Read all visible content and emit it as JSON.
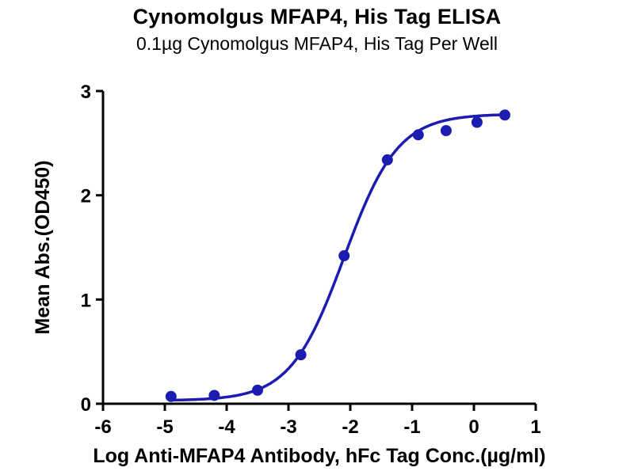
{
  "chart_data": {
    "type": "scatter",
    "title": "Cynomolgus MFAP4, His Tag ELISA",
    "subtitle": "0.1µg Cynomolgus MFAP4, His Tag Per Well",
    "xlabel": "Log Anti-MFAP4 Antibody, hFc Tag Conc.(µg/ml)",
    "ylabel": "Mean Abs.(OD450)",
    "xlim": [
      -6,
      1
    ],
    "ylim": [
      0,
      3
    ],
    "x_ticks": [
      -6,
      -5,
      -4,
      -3,
      -2,
      -1,
      0,
      1
    ],
    "y_ticks": [
      0,
      1,
      2,
      3
    ],
    "grid": false,
    "legend": "none",
    "line_color": "#1c1cb0",
    "point_color": "#1c1cb0",
    "axis_color": "#000000",
    "points": [
      [
        -4.9,
        0.07
      ],
      [
        -4.2,
        0.08
      ],
      [
        -3.5,
        0.13
      ],
      [
        -2.8,
        0.47
      ],
      [
        -2.1,
        1.42
      ],
      [
        -1.4,
        2.34
      ],
      [
        -0.9,
        2.58
      ],
      [
        -0.45,
        2.62
      ],
      [
        0.05,
        2.7
      ],
      [
        0.5,
        2.77
      ]
    ],
    "fit": {
      "model": "4PL",
      "bottom": 0.03,
      "top": 2.78,
      "log_ec50": -2.1,
      "hill": 1.0,
      "x_start": -4.9,
      "x_end": 0.52
    }
  }
}
